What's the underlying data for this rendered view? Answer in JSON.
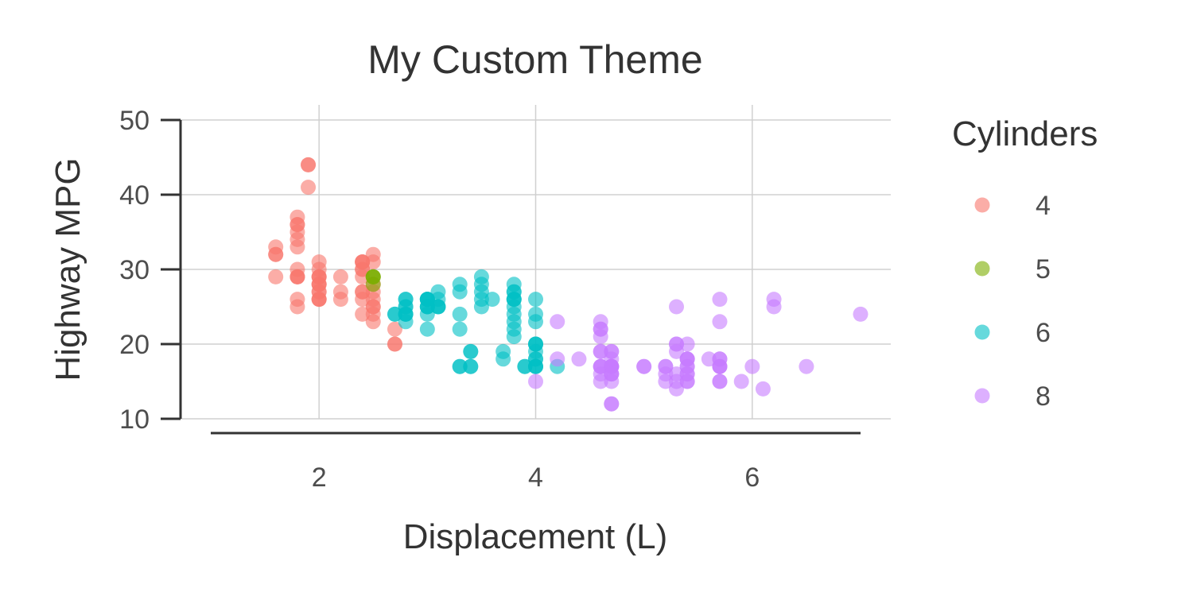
{
  "chart_data": {
    "type": "scatter",
    "title": "My Custom Theme",
    "xlabel": "Displacement (L)",
    "ylabel": "Highway MPG",
    "xlim": [
      1.0,
      7.0
    ],
    "ylim": [
      10,
      50
    ],
    "xticks": [
      2,
      4,
      6
    ],
    "yticks": [
      10,
      20,
      30,
      40,
      50
    ],
    "grid": true,
    "legend": {
      "title": "Cylinders",
      "placement": "right"
    },
    "series": [
      {
        "name": "4",
        "color": "#F8766D",
        "points": [
          [
            1.8,
            29
          ],
          [
            1.8,
            29
          ],
          [
            2.0,
            31
          ],
          [
            2.0,
            30
          ],
          [
            2.0,
            26
          ],
          [
            2.0,
            28
          ],
          [
            2.0,
            27
          ],
          [
            2.0,
            26
          ],
          [
            2.0,
            29
          ],
          [
            2.0,
            28
          ],
          [
            2.4,
            27
          ],
          [
            2.4,
            30
          ],
          [
            2.2,
            26
          ],
          [
            2.2,
            29
          ],
          [
            2.4,
            26
          ],
          [
            2.4,
            27
          ],
          [
            2.5,
            23
          ],
          [
            2.5,
            25
          ],
          [
            2.5,
            26
          ],
          [
            2.5,
            27
          ],
          [
            2.5,
            25
          ],
          [
            2.5,
            24
          ],
          [
            2.5,
            28
          ],
          [
            2.5,
            32
          ],
          [
            2.5,
            31
          ],
          [
            1.8,
            26
          ],
          [
            1.8,
            25
          ],
          [
            1.6,
            32
          ],
          [
            1.6,
            32
          ],
          [
            1.6,
            29
          ],
          [
            1.6,
            33
          ],
          [
            1.8,
            34
          ],
          [
            1.8,
            36
          ],
          [
            1.8,
            36
          ],
          [
            1.8,
            35
          ],
          [
            1.8,
            37
          ],
          [
            1.9,
            44
          ],
          [
            1.9,
            44
          ],
          [
            1.9,
            41
          ],
          [
            1.8,
            33
          ],
          [
            1.8,
            29
          ],
          [
            2.4,
            30
          ],
          [
            2.4,
            31
          ],
          [
            2.4,
            24
          ],
          [
            2.4,
            29
          ],
          [
            2.7,
            20
          ],
          [
            2.7,
            22
          ],
          [
            2.7,
            20
          ],
          [
            2.0,
            29
          ],
          [
            2.0,
            28
          ],
          [
            2.0,
            27
          ],
          [
            2.2,
            27
          ],
          [
            2.4,
            31
          ],
          [
            2.4,
            31
          ],
          [
            1.8,
            30
          ],
          [
            2.0,
            29
          ],
          [
            2.0,
            26
          ]
        ]
      },
      {
        "name": "5",
        "color": "#7CAE00",
        "points": [
          [
            2.5,
            29
          ],
          [
            2.5,
            29
          ],
          [
            2.5,
            28
          ],
          [
            2.5,
            29
          ]
        ]
      },
      {
        "name": "6",
        "color": "#00BFC4",
        "points": [
          [
            2.8,
            26
          ],
          [
            2.8,
            25
          ],
          [
            3.1,
            25
          ],
          [
            3.1,
            27
          ],
          [
            2.8,
            25
          ],
          [
            2.8,
            24
          ],
          [
            3.0,
            26
          ],
          [
            3.0,
            26
          ],
          [
            3.1,
            26
          ],
          [
            3.1,
            25
          ],
          [
            3.8,
            24
          ],
          [
            3.8,
            26
          ],
          [
            3.8,
            28
          ],
          [
            3.8,
            27
          ],
          [
            3.8,
            26
          ],
          [
            3.8,
            25
          ],
          [
            3.5,
            29
          ],
          [
            3.5,
            27
          ],
          [
            3.5,
            26
          ],
          [
            3.3,
            24
          ],
          [
            3.3,
            22
          ],
          [
            3.3,
            27
          ],
          [
            3.3,
            28
          ],
          [
            3.3,
            17
          ],
          [
            3.7,
            19
          ],
          [
            3.7,
            18
          ],
          [
            3.9,
            17
          ],
          [
            3.9,
            17
          ],
          [
            4.0,
            17
          ],
          [
            4.0,
            20
          ],
          [
            4.0,
            19
          ],
          [
            4.0,
            17
          ],
          [
            4.0,
            23
          ],
          [
            4.0,
            24
          ],
          [
            4.0,
            26
          ],
          [
            4.2,
            17
          ],
          [
            3.4,
            17
          ],
          [
            3.4,
            19
          ],
          [
            4.0,
            17
          ],
          [
            4.0,
            18
          ],
          [
            4.0,
            20
          ],
          [
            3.0,
            22
          ],
          [
            3.0,
            24
          ],
          [
            3.5,
            25
          ],
          [
            3.6,
            26
          ],
          [
            2.7,
            24
          ],
          [
            2.7,
            24
          ],
          [
            2.8,
            23
          ],
          [
            2.8,
            24
          ],
          [
            3.0,
            25
          ],
          [
            3.3,
            17
          ],
          [
            3.8,
            23
          ],
          [
            3.8,
            21
          ],
          [
            3.8,
            22
          ],
          [
            3.5,
            28
          ],
          [
            3.0,
            25
          ],
          [
            3.0,
            26
          ],
          [
            3.1,
            25
          ],
          [
            3.4,
            19
          ],
          [
            3.4,
            17
          ],
          [
            2.8,
            26
          ],
          [
            2.8,
            24
          ],
          [
            4.0,
            18
          ],
          [
            4.0,
            20
          ],
          [
            3.8,
            26
          ],
          [
            3.8,
            27
          ],
          [
            3.0,
            26
          ],
          [
            3.0,
            25
          ]
        ]
      },
      {
        "name": "8",
        "color": "#C77CFF",
        "points": [
          [
            5.3,
            20
          ],
          [
            5.3,
            15
          ],
          [
            5.3,
            20
          ],
          [
            5.7,
            17
          ],
          [
            6.0,
            17
          ],
          [
            5.7,
            26
          ],
          [
            5.7,
            23
          ],
          [
            6.2,
            26
          ],
          [
            6.2,
            25
          ],
          [
            7.0,
            24
          ],
          [
            5.3,
            19
          ],
          [
            5.3,
            14
          ],
          [
            5.7,
            15
          ],
          [
            6.5,
            17
          ],
          [
            4.7,
            17
          ],
          [
            4.7,
            17
          ],
          [
            4.7,
            12
          ],
          [
            5.2,
            17
          ],
          [
            5.2,
            17
          ],
          [
            5.7,
            15
          ],
          [
            5.9,
            15
          ],
          [
            4.7,
            16
          ],
          [
            4.7,
            12
          ],
          [
            4.7,
            15
          ],
          [
            4.7,
            16
          ],
          [
            5.7,
            17
          ],
          [
            6.1,
            14
          ],
          [
            4.6,
            17
          ],
          [
            5.4,
            15
          ],
          [
            5.4,
            18
          ],
          [
            4.6,
            19
          ],
          [
            5.4,
            17
          ],
          [
            5.4,
            20
          ],
          [
            5.4,
            15
          ],
          [
            4.2,
            18
          ],
          [
            4.4,
            18
          ],
          [
            4.6,
            23
          ],
          [
            4.6,
            22
          ],
          [
            5.4,
            17
          ],
          [
            5.4,
            16
          ],
          [
            4.6,
            21
          ],
          [
            5.0,
            17
          ],
          [
            4.6,
            22
          ],
          [
            5.4,
            18
          ],
          [
            4.0,
            15
          ],
          [
            4.7,
            17
          ],
          [
            4.7,
            19
          ],
          [
            4.7,
            18
          ],
          [
            5.7,
            17
          ],
          [
            5.7,
            18
          ],
          [
            4.2,
            23
          ],
          [
            4.6,
            16
          ],
          [
            4.6,
            17
          ],
          [
            5.2,
            15
          ],
          [
            5.3,
            16
          ],
          [
            5.4,
            18
          ],
          [
            5.6,
            18
          ],
          [
            4.6,
            15
          ],
          [
            5.2,
            16
          ],
          [
            5.7,
            18
          ],
          [
            4.7,
            19
          ],
          [
            4.6,
            17
          ],
          [
            5.0,
            17
          ],
          [
            5.4,
            16
          ],
          [
            4.7,
            17
          ],
          [
            4.6,
            19
          ],
          [
            5.3,
            25
          ],
          [
            4.7,
            17
          ],
          [
            4.7,
            16
          ]
        ]
      }
    ]
  }
}
